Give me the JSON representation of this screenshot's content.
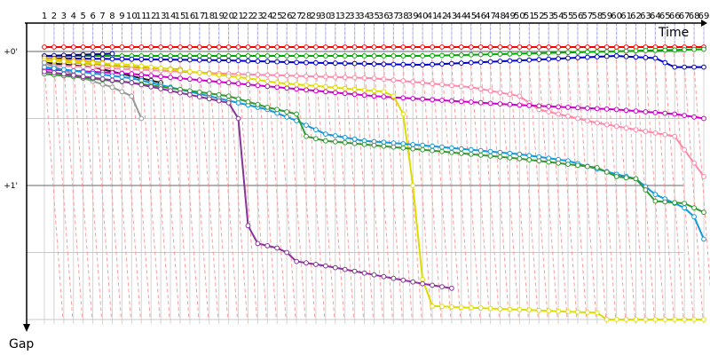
{
  "chart_data": {
    "type": "line",
    "xlabel": "Time",
    "ylabel": "Gap",
    "x_ticks": [
      "1",
      "2",
      "3",
      "4",
      "5",
      "6",
      "7",
      "8",
      "9",
      "10",
      "11",
      "12",
      "13",
      "14",
      "15",
      "16",
      "17",
      "18",
      "19",
      "20",
      "21",
      "22",
      "23",
      "24",
      "25",
      "26",
      "27",
      "28",
      "29",
      "30",
      "31",
      "32",
      "33",
      "34",
      "35",
      "36",
      "37",
      "38",
      "39",
      "40",
      "41",
      "42",
      "43",
      "44",
      "45",
      "46",
      "47",
      "48",
      "49",
      "50",
      "51",
      "52",
      "53",
      "54",
      "55",
      "56",
      "57",
      "58",
      "59",
      "60",
      "61",
      "62",
      "63",
      "64",
      "65",
      "66",
      "67",
      "68",
      "69"
    ],
    "y_ticks": [
      {
        "label": "+0'",
        "value": 0
      },
      {
        "label": "+1'",
        "value": 60
      }
    ],
    "ylim": [
      0,
      120
    ],
    "grid": true,
    "lapped_marker_color": "#ff9999",
    "series": [
      {
        "color": "#ff0000",
        "last_lap": 69,
        "values": [
          [
            1,
            -2
          ],
          [
            69,
            -2
          ]
        ]
      },
      {
        "color": "#00aa00",
        "last_lap": 69,
        "values": [
          [
            1,
            2
          ],
          [
            40,
            2
          ],
          [
            69,
            -1
          ]
        ]
      },
      {
        "color": "#000080",
        "last_lap": 8,
        "values": [
          [
            1,
            2
          ],
          [
            8,
            1
          ]
        ]
      },
      {
        "color": "#0000cc",
        "last_lap": 69,
        "values": [
          [
            1,
            3
          ],
          [
            20,
            4
          ],
          [
            28,
            5
          ],
          [
            40,
            6
          ],
          [
            50,
            4
          ],
          [
            60,
            2
          ],
          [
            64,
            3
          ],
          [
            66,
            7
          ],
          [
            69,
            7
          ]
        ]
      },
      {
        "color": "#ccaa00",
        "last_lap": 15,
        "values": [
          [
            1,
            4
          ],
          [
            10,
            7
          ],
          [
            15,
            8
          ]
        ]
      },
      {
        "color": "#1a1a1a",
        "last_lap": 13,
        "values": [
          [
            1,
            5
          ],
          [
            6,
            7
          ],
          [
            10,
            11
          ],
          [
            13,
            14
          ]
        ]
      },
      {
        "color": "#e8a000",
        "last_lap": 7,
        "values": [
          [
            1,
            3
          ],
          [
            7,
            5
          ]
        ]
      },
      {
        "color": "#ff88aa",
        "last_lap": 69,
        "values": [
          [
            1,
            6
          ],
          [
            10,
            8
          ],
          [
            20,
            10
          ],
          [
            35,
            12
          ],
          [
            45,
            16
          ],
          [
            50,
            20
          ],
          [
            52,
            26
          ],
          [
            58,
            32
          ],
          [
            66,
            38
          ],
          [
            69,
            56
          ]
        ]
      },
      {
        "color": "#cc00cc",
        "last_lap": 69,
        "values": [
          [
            1,
            8
          ],
          [
            10,
            10
          ],
          [
            20,
            14
          ],
          [
            35,
            20
          ],
          [
            50,
            24
          ],
          [
            60,
            26
          ],
          [
            66,
            28
          ],
          [
            69,
            30
          ]
        ]
      },
      {
        "color": "#dddd00",
        "last_lap": 69,
        "values": [
          [
            1,
            4
          ],
          [
            10,
            6
          ],
          [
            22,
            12
          ],
          [
            25,
            14
          ],
          [
            36,
            18
          ],
          [
            37,
            20
          ],
          [
            38,
            28
          ],
          [
            39,
            60
          ],
          [
            40,
            102
          ],
          [
            41,
            114
          ],
          [
            58,
            117
          ],
          [
            59,
            120
          ],
          [
            69,
            120
          ]
        ]
      },
      {
        "color": "#999999",
        "last_lap": 11,
        "values": [
          [
            1,
            5
          ],
          [
            5,
            12
          ],
          [
            8,
            16
          ],
          [
            10,
            20
          ],
          [
            11,
            30
          ]
        ]
      },
      {
        "color": "#1199dd",
        "last_lap": 69,
        "values": [
          [
            1,
            7
          ],
          [
            10,
            12
          ],
          [
            20,
            22
          ],
          [
            24,
            26
          ],
          [
            27,
            31
          ],
          [
            30,
            37
          ],
          [
            34,
            40
          ],
          [
            40,
            42
          ],
          [
            50,
            46
          ],
          [
            55,
            49
          ],
          [
            60,
            55
          ],
          [
            62,
            57
          ],
          [
            64,
            64
          ],
          [
            67,
            70
          ],
          [
            68,
            74
          ],
          [
            69,
            84
          ]
        ]
      },
      {
        "color": "#339933",
        "last_lap": 69,
        "values": [
          [
            1,
            10
          ],
          [
            10,
            14
          ],
          [
            20,
            20
          ],
          [
            24,
            25
          ],
          [
            27,
            28
          ],
          [
            28,
            38
          ],
          [
            30,
            40
          ],
          [
            40,
            44
          ],
          [
            50,
            48
          ],
          [
            58,
            52
          ],
          [
            60,
            56
          ],
          [
            62,
            57
          ],
          [
            64,
            67
          ],
          [
            67,
            68
          ],
          [
            69,
            72
          ]
        ]
      },
      {
        "color": "#883399",
        "last_lap": 43,
        "values": [
          [
            1,
            9
          ],
          [
            10,
            14
          ],
          [
            20,
            23
          ],
          [
            21,
            30
          ],
          [
            22,
            78
          ],
          [
            23,
            86
          ],
          [
            25,
            88
          ],
          [
            26,
            90
          ],
          [
            27,
            94
          ],
          [
            30,
            96
          ],
          [
            35,
            100
          ],
          [
            40,
            104
          ],
          [
            43,
            106
          ]
        ]
      }
    ]
  }
}
